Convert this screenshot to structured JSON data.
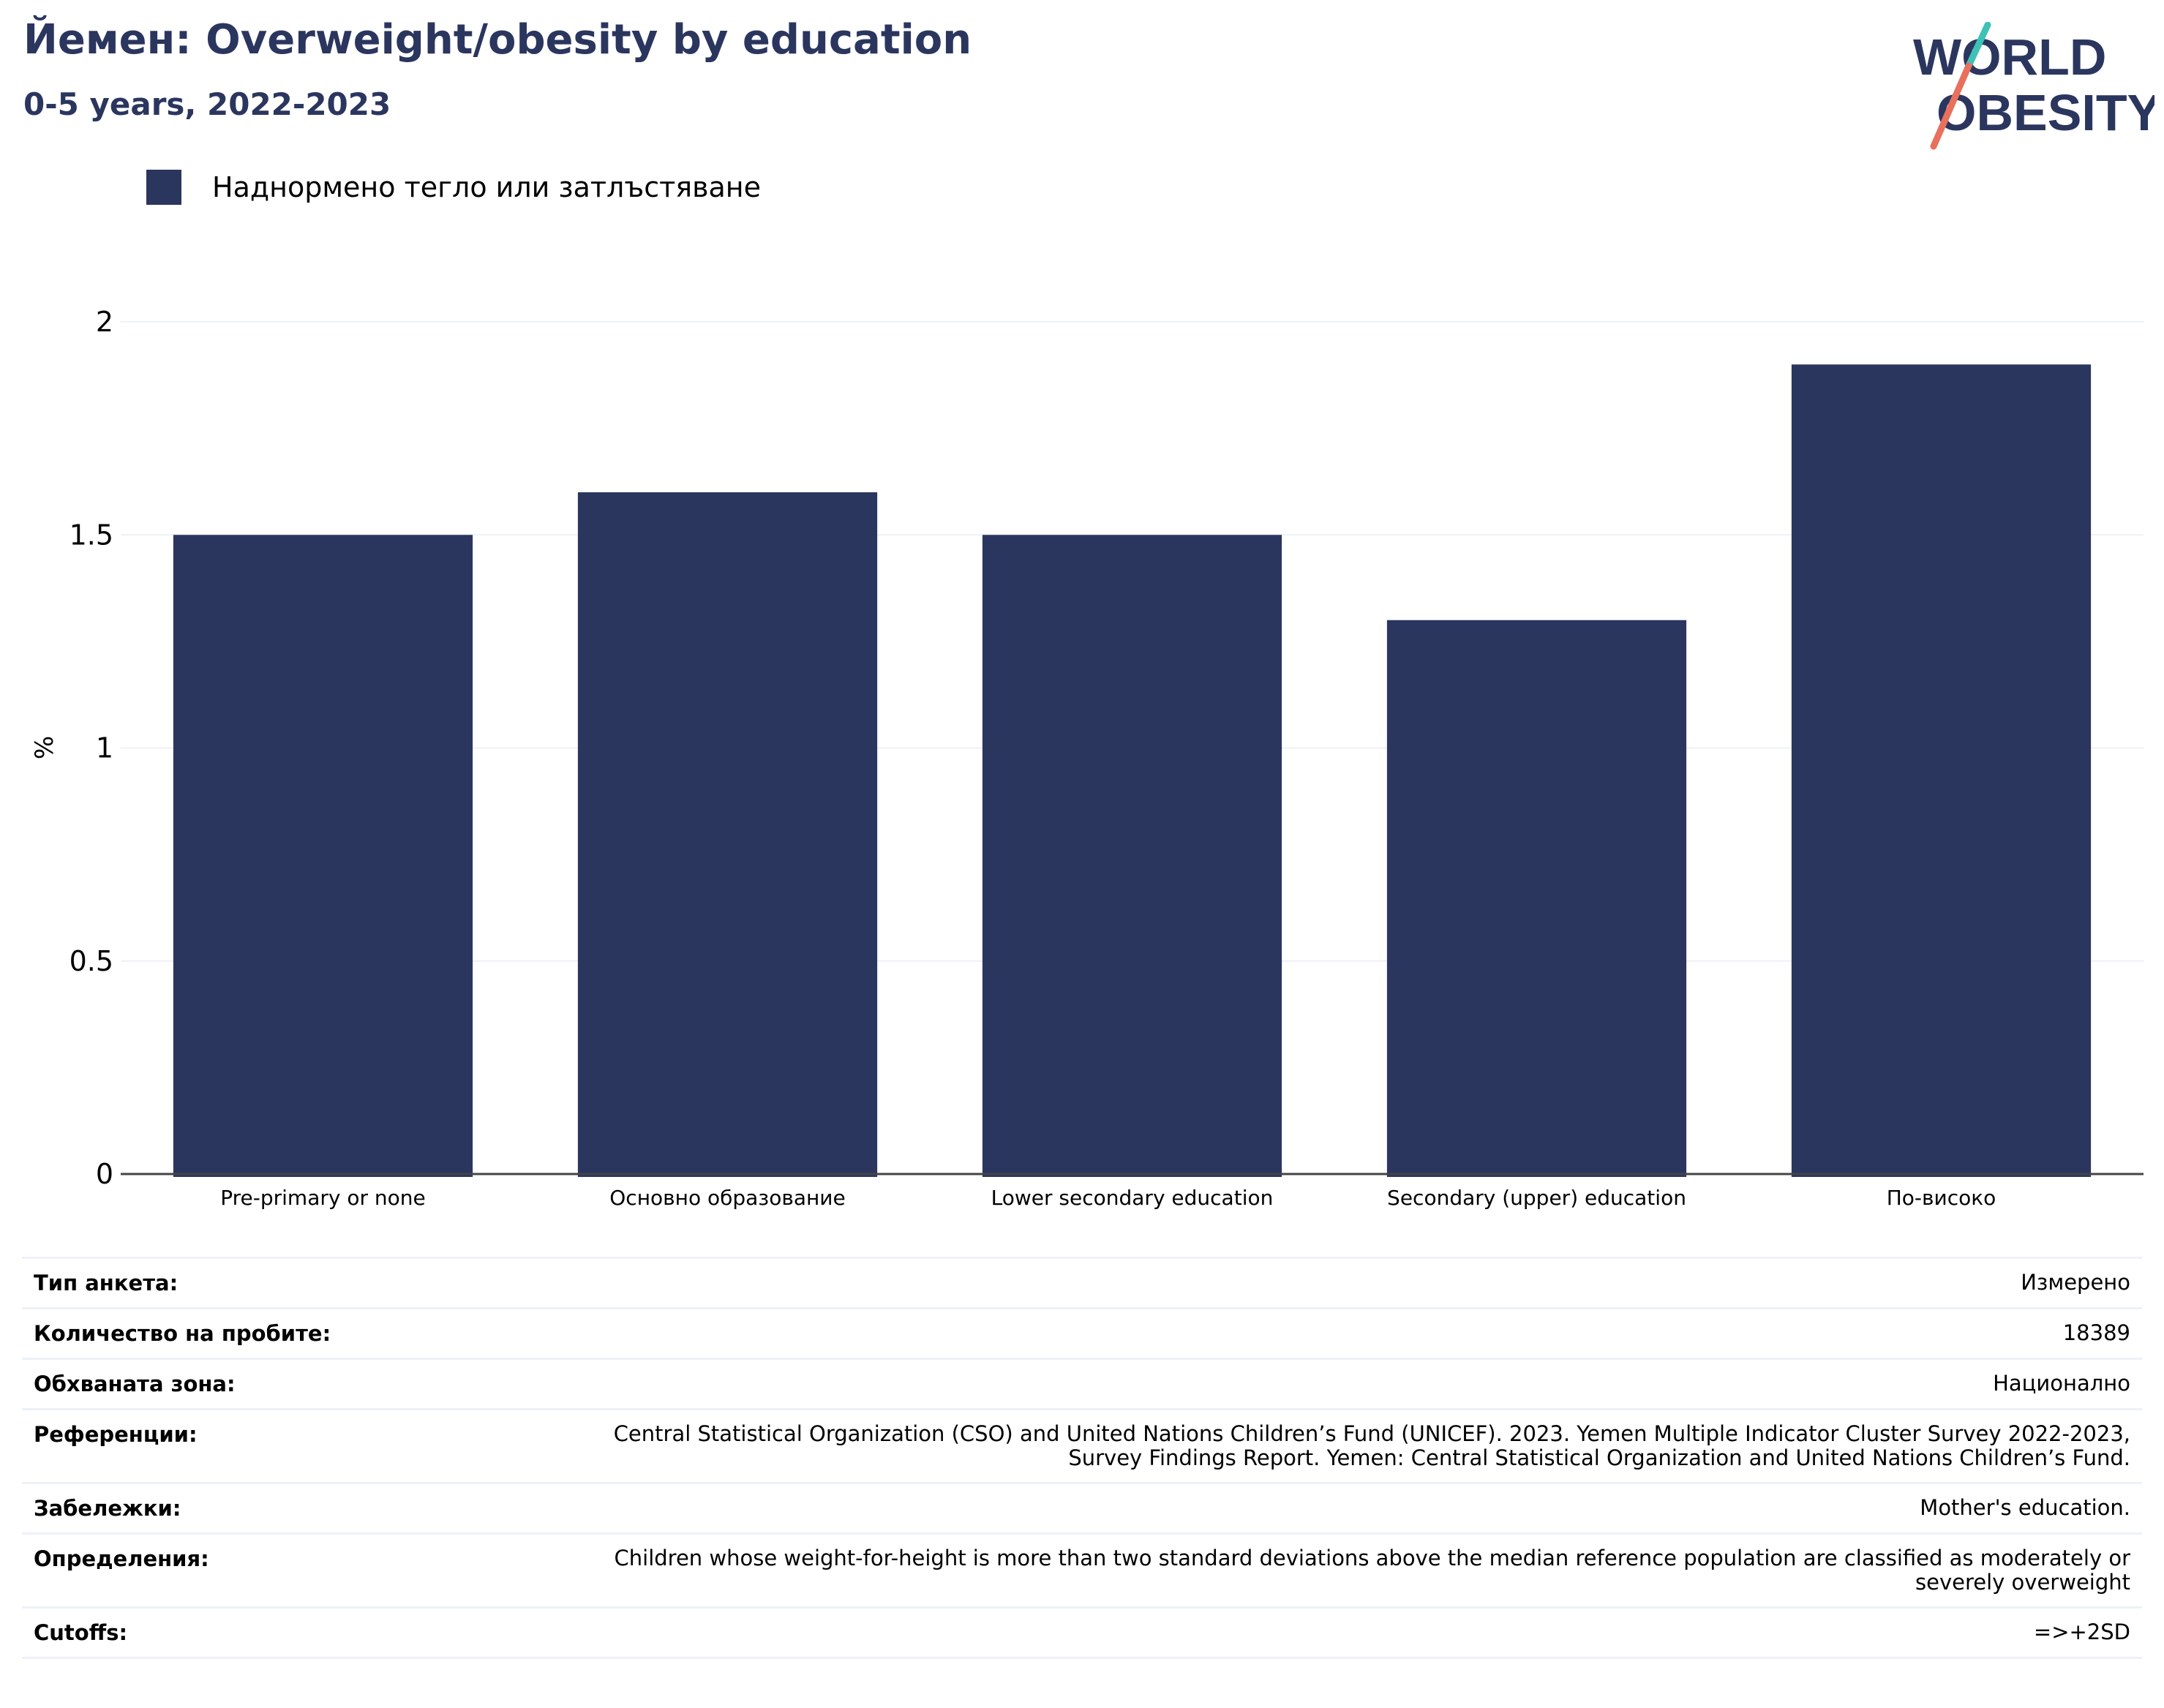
{
  "header": {
    "title": "Йемен: Overweight/obesity by education",
    "subtitle": "0-5 years, 2022-2023",
    "logo_line1": "WORLD",
    "logo_line2": "OBESITY"
  },
  "colors": {
    "bar": "#2b365f",
    "title": "#2b365f",
    "logo_teal": "#3ec1b6",
    "logo_coral": "#e8705c",
    "grid": "#eef1f9"
  },
  "chart_data": {
    "type": "bar",
    "title": "Йемен: Overweight/obesity by education",
    "subtitle": "0-5 years, 2022-2023",
    "categories": [
      "Pre-primary or none",
      "Основно образование",
      "Lower secondary education",
      "Secondary (upper) education",
      "По-високо"
    ],
    "series": [
      {
        "name": "Наднормено тегло или затлъстяване",
        "values": [
          1.5,
          1.6,
          1.5,
          1.3,
          1.9
        ]
      }
    ],
    "ylabel": "%",
    "xlabel": "",
    "ylim": [
      0,
      2
    ],
    "yticks": [
      0,
      0.5,
      1,
      1.5,
      2
    ],
    "ytick_labels": [
      "0",
      "0.5",
      "1",
      "1.5",
      "2"
    ],
    "grid": true,
    "legend_position": "top-left"
  },
  "info": [
    {
      "key": "Тип анкета:",
      "value": "Измерено"
    },
    {
      "key": "Количество на пробите:",
      "value": "18389"
    },
    {
      "key": "Обхваната зона:",
      "value": "Национално"
    },
    {
      "key": "Референции:",
      "value": "Central Statistical Organization (CSO) and United Nations Children’s Fund (UNICEF). 2023. Yemen Multiple Indicator Cluster Survey 2022-2023, Survey Findings Report. Yemen: Central Statistical Organization and United Nations Children’s Fund."
    },
    {
      "key": "Забележки:",
      "value": "Mother's education."
    },
    {
      "key": "Определения:",
      "value": "Children whose weight-for-height is more than two standard deviations above the median reference population are classified as moderately or severely overweight"
    },
    {
      "key": "Cutoffs:",
      "value": "=>+2SD"
    }
  ]
}
